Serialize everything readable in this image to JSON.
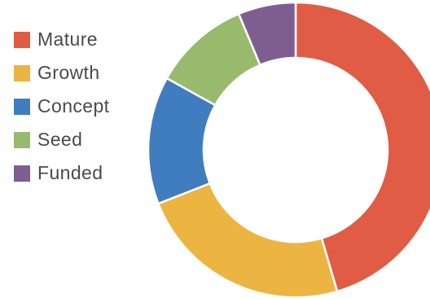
{
  "chart_data": {
    "type": "pie",
    "donut": true,
    "title": "",
    "legend_position": "left",
    "categories": [
      "Mature",
      "Growth",
      "Concept",
      "Seed",
      "Funded"
    ],
    "values": [
      45.4,
      23.6,
      14.0,
      10.6,
      6.3
    ],
    "colors": [
      "#e05c45",
      "#ecb441",
      "#3f7dbf",
      "#98ba6d",
      "#7e5e90"
    ],
    "start_angle_deg": 0,
    "direction": "clockwise"
  }
}
